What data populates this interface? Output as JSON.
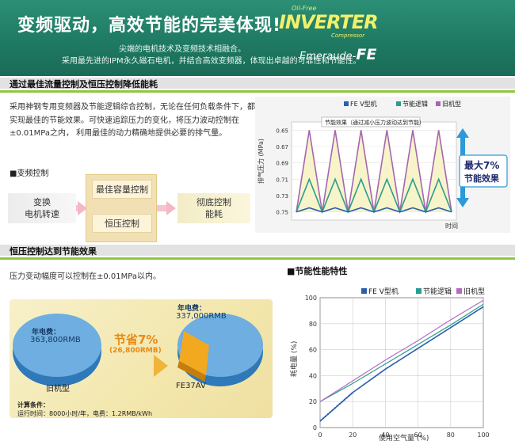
{
  "banner": {
    "title": "变频驱动，高效节能的完美体现!",
    "line1": "尖端的电机技术及变频技术相融合。",
    "line2": "采用最先进的IPM永久磁石电机，并结合高效变频器，体现出卓越的可靠性和节能性。",
    "logo_oilfree": "Oil-Free",
    "logo_inverter": "INVERTER",
    "logo_compressor": "Compressor",
    "logo_emeraude": "Emeraude-",
    "logo_fe": "FE",
    "bg_color": "#1f7a63"
  },
  "section1": {
    "title": "通过最佳流量控制及恒压控制降低能耗",
    "paragraph": "采用神钢专用变频器及节能逻辑综合控制，无论在任何负载条件下，都能实现最佳的节能效果。可快速追踪压力的变化，将压力波动控制在±0.01MPa之内， 利用最佳的动力精确地提供必要的排气量。",
    "subheading": "■变频控制",
    "flow": {
      "left": "变换\n电机转速",
      "mid_top": "最佳容量控制",
      "mid_bottom": "恒压控制",
      "right": "彻底控制\n能耗"
    }
  },
  "chart1": {
    "legend": [
      "FE V型机",
      "节能逻辑",
      "旧机型"
    ],
    "ylabel": "排气压力 (MPa)",
    "xlabel": "时间",
    "annotation": "节能效果（通过减小压力波动达到节能）",
    "badge_line1": "最大7%",
    "badge_line2": "节能效果",
    "yticks": [
      "0.75",
      "0.73",
      "0.71",
      "0.69",
      "0.67",
      "0.65"
    ]
  },
  "section2": {
    "title": "恒压控制达到节能效果",
    "paragraph": "压力变动幅度可以控制在±0.01MPa以内。",
    "energy": {
      "old_label": "年电费：",
      "old_value": "363,800RMB",
      "old_name": "旧机型",
      "new_label": "年电费：",
      "new_value": "337,000RMB",
      "new_name": "FE37AV",
      "save_title": "节省7%",
      "save_value": "(26,800RMB)",
      "calc_title": "计算条件：",
      "calc_detail": "运行时间：8000小时/年，电费：1.2RMB/kWh"
    }
  },
  "chart_data": [
    {
      "type": "line",
      "title": "",
      "xlabel": "时间",
      "ylabel": "排气压力 (MPa)",
      "ylim": [
        0.64,
        0.76
      ],
      "yticks": [
        0.65,
        0.67,
        0.69,
        0.71,
        0.73,
        0.75
      ],
      "x": [
        0,
        1,
        2,
        3,
        4,
        5,
        6,
        7,
        8,
        9,
        10,
        11,
        12
      ],
      "series": [
        {
          "name": "旧机型",
          "color": "#a665b0",
          "values": [
            0.65,
            0.75,
            0.65,
            0.75,
            0.65,
            0.75,
            0.65,
            0.75,
            0.65,
            0.75,
            0.65,
            0.75,
            0.65
          ]
        },
        {
          "name": "节能逻辑",
          "color": "#2a9d8f",
          "values": [
            0.65,
            0.69,
            0.65,
            0.69,
            0.65,
            0.69,
            0.65,
            0.69,
            0.65,
            0.69,
            0.65,
            0.69,
            0.65
          ]
        },
        {
          "name": "FE V型机",
          "color": "#2b5fae",
          "values": [
            0.65,
            0.655,
            0.65,
            0.655,
            0.65,
            0.655,
            0.65,
            0.655,
            0.65,
            0.655,
            0.65,
            0.655,
            0.65
          ]
        }
      ]
    },
    {
      "type": "line",
      "title": "■节能性能特性",
      "xlabel": "使用空气量 (%)",
      "ylabel": "耗电量 (%)",
      "xlim": [
        0,
        100
      ],
      "ylim": [
        0,
        100
      ],
      "xticks": [
        0,
        20,
        40,
        60,
        80,
        100
      ],
      "yticks": [
        0,
        20,
        40,
        60,
        80,
        100
      ],
      "series": [
        {
          "name": "FE V型机",
          "color": "#2b5fae",
          "x": [
            0,
            20,
            40,
            60,
            80,
            100
          ],
          "values": [
            5,
            27,
            45,
            61,
            77,
            93
          ]
        },
        {
          "name": "节能逻辑",
          "color": "#2a9d8f",
          "x": [
            0,
            20,
            40,
            60,
            80,
            100
          ],
          "values": [
            20,
            34,
            49,
            64,
            79,
            95
          ]
        },
        {
          "name": "旧机型",
          "color": "#b36cc0",
          "x": [
            0,
            20,
            40,
            60,
            80,
            100
          ],
          "values": [
            20,
            36,
            52,
            67,
            83,
            98
          ]
        }
      ]
    }
  ]
}
